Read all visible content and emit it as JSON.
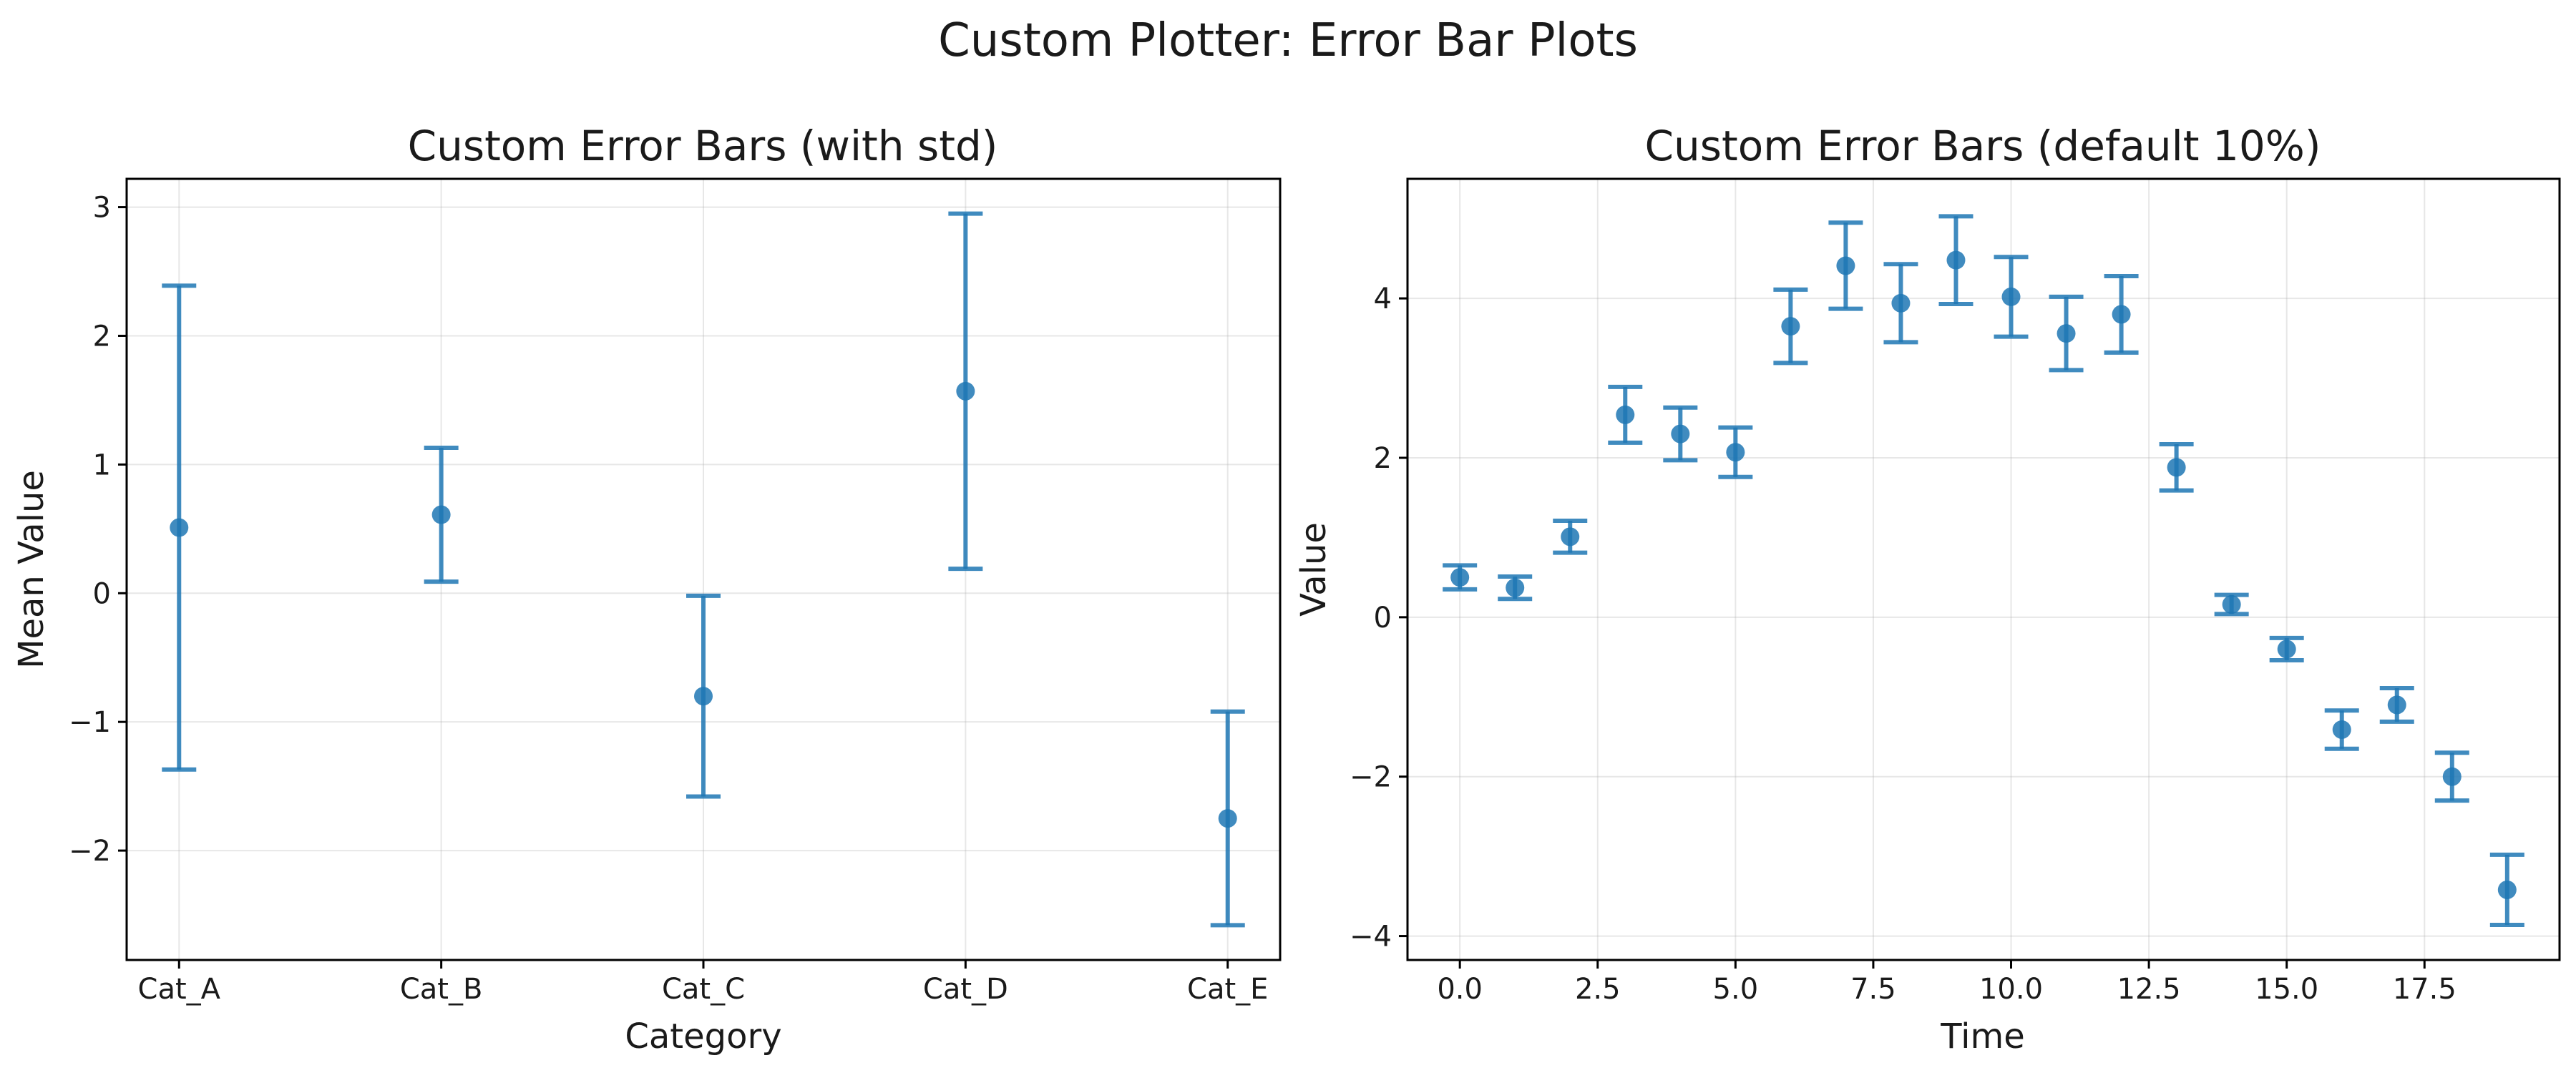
{
  "figure": {
    "suptitle": "Custom Plotter: Error Bar Plots",
    "series_color": "#1f77b4"
  },
  "chart_data": [
    {
      "type": "scatter",
      "title": "Custom Error Bars (with std)",
      "xlabel": "Category",
      "ylabel": "Mean Value",
      "categories": [
        "Cat_A",
        "Cat_B",
        "Cat_C",
        "Cat_D",
        "Cat_E"
      ],
      "values": [
        0.51,
        0.61,
        -0.8,
        1.57,
        -1.75
      ],
      "errors": [
        1.88,
        0.52,
        0.78,
        1.38,
        0.83
      ],
      "ylim": [
        -2.85,
        3.22
      ],
      "yticks": [
        -2,
        -1,
        0,
        1,
        2,
        3
      ],
      "ytick_labels": [
        "−2",
        "−1",
        "0",
        "1",
        "2",
        "3"
      ],
      "grid": true
    },
    {
      "type": "scatter",
      "title": "Custom Error Bars (default 10%)",
      "xlabel": "Time",
      "ylabel": "Value",
      "x": [
        0,
        1,
        2,
        3,
        4,
        5,
        6,
        7,
        8,
        9,
        10,
        11,
        12,
        13,
        14,
        15,
        16,
        17,
        18,
        19
      ],
      "values": [
        0.5,
        0.37,
        1.01,
        2.54,
        2.3,
        2.07,
        3.65,
        4.41,
        3.94,
        4.48,
        4.02,
        3.56,
        3.8,
        1.88,
        0.16,
        -0.4,
        -1.41,
        -1.1,
        -2.0,
        -3.42
      ],
      "errors": [
        0.15,
        0.14,
        0.2,
        0.35,
        0.33,
        0.31,
        0.46,
        0.54,
        0.49,
        0.55,
        0.5,
        0.46,
        0.48,
        0.29,
        0.12,
        0.14,
        0.24,
        0.21,
        0.3,
        0.44
      ],
      "xlim": [
        -0.95,
        19.95
      ],
      "ylim": [
        -4.3,
        5.5
      ],
      "xticks": [
        0,
        2.5,
        5,
        7.5,
        10,
        12.5,
        15,
        17.5
      ],
      "xtick_labels": [
        "0.0",
        "2.5",
        "5.0",
        "7.5",
        "10.0",
        "12.5",
        "15.0",
        "17.5"
      ],
      "yticks": [
        -4,
        -2,
        0,
        2,
        4
      ],
      "ytick_labels": [
        "−4",
        "−2",
        "0",
        "2",
        "4"
      ],
      "grid": true
    }
  ]
}
